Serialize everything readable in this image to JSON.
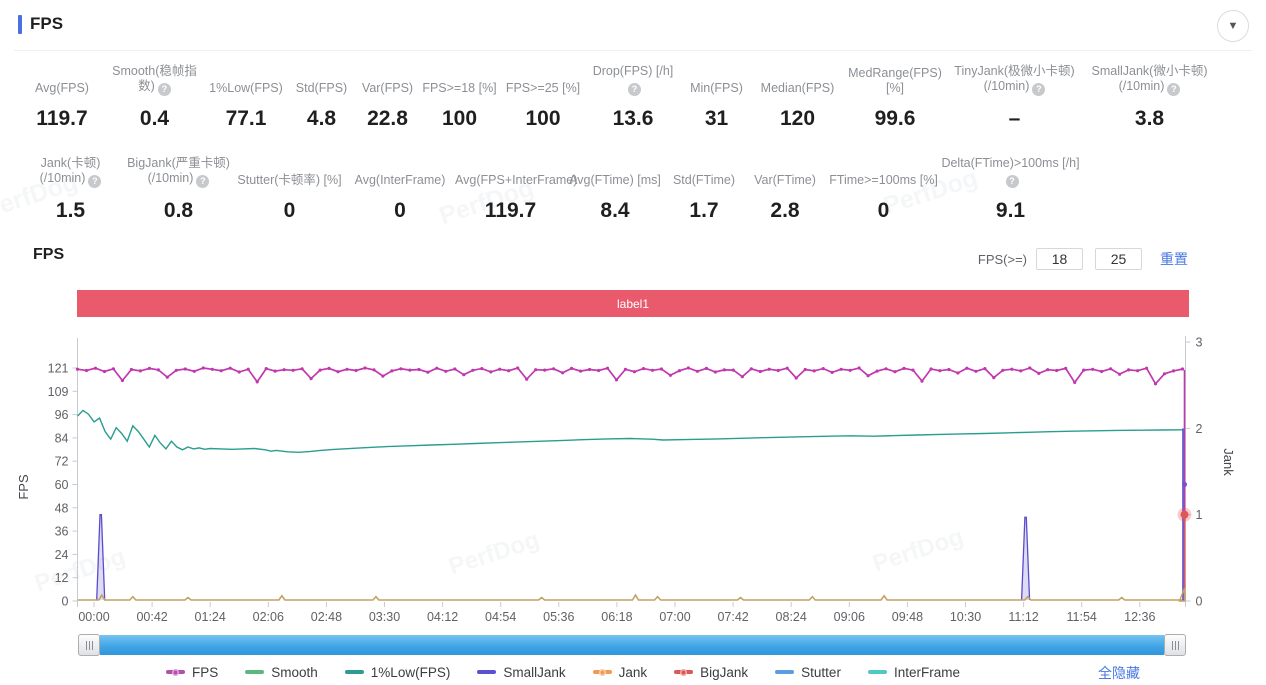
{
  "header": {
    "title": "FPS"
  },
  "stats": {
    "rows": [
      [
        {
          "label": "Avg(FPS)",
          "value": "119.7",
          "help": false
        },
        {
          "label": "Smooth(稳帧指数)",
          "value": "0.4",
          "help": true
        },
        {
          "label": "1%Low(FPS)",
          "value": "77.1",
          "help": false
        },
        {
          "label": "Std(FPS)",
          "value": "4.8",
          "help": false
        },
        {
          "label": "Var(FPS)",
          "value": "22.8",
          "help": false
        },
        {
          "label": "FPS>=18 [%]",
          "value": "100",
          "help": false
        },
        {
          "label": "FPS>=25 [%]",
          "value": "100",
          "help": false
        },
        {
          "label": "Drop(FPS) [/h]",
          "value": "13.6",
          "help": true
        },
        {
          "label": "Min(FPS)",
          "value": "31",
          "help": false
        },
        {
          "label": "Median(FPS)",
          "value": "120",
          "help": false
        },
        {
          "label": "MedRange(FPS)[%]",
          "value": "99.6",
          "help": false
        },
        {
          "label": "TinyJank(极微小卡顿)\n(/10min)",
          "value": "–",
          "help": true
        },
        {
          "label": "SmallJank(微小卡顿)\n(/10min)",
          "value": "3.8",
          "help": true
        }
      ],
      [
        {
          "label": "Jank(卡顿)\n(/10min)",
          "value": "1.5",
          "help": true
        },
        {
          "label": "BigJank(严重卡顿)\n(/10min)",
          "value": "0.8",
          "help": true
        },
        {
          "label": "Stutter(卡顿率) [%]",
          "value": "0",
          "help": false
        },
        {
          "label": "Avg(InterFrame)",
          "value": "0",
          "help": false
        },
        {
          "label": "Avg(FPS+InterFrame)",
          "value": "119.7",
          "help": false
        },
        {
          "label": "Avg(FTime) [ms]",
          "value": "8.4",
          "help": false
        },
        {
          "label": "Std(FTime)",
          "value": "1.7",
          "help": false
        },
        {
          "label": "Var(FTime)",
          "value": "2.8",
          "help": false
        },
        {
          "label": "FTime>=100ms [%]",
          "value": "0",
          "help": false
        },
        {
          "label": "Delta(FTime)>100ms [/h]",
          "value": "9.1",
          "help": true
        }
      ]
    ]
  },
  "section": {
    "title": "FPS",
    "filter_label": "FPS(>=)",
    "threshold1": "18",
    "threshold2": "25",
    "reset_label": "重置"
  },
  "label_bar": {
    "text": "label1",
    "color": "#ea5a6d"
  },
  "watermark": "PerfDog",
  "chart_data": {
    "type": "line",
    "title": "FPS",
    "x_axis": {
      "labels": [
        "00:00",
        "00:42",
        "01:24",
        "02:06",
        "02:48",
        "03:30",
        "04:12",
        "04:54",
        "05:36",
        "06:18",
        "07:00",
        "07:42",
        "08:24",
        "09:06",
        "09:48",
        "10:30",
        "11:12",
        "11:54",
        "12:36"
      ]
    },
    "y_axis_left": {
      "label": "FPS",
      "tick_labels": [
        0,
        12,
        24,
        36,
        48,
        60,
        72,
        84,
        96,
        109,
        121
      ],
      "range": [
        0,
        121
      ]
    },
    "y_axis_right": {
      "label": "Jank",
      "tick_labels": [
        0,
        1,
        2,
        3
      ],
      "range": [
        0,
        3
      ]
    },
    "series": [
      {
        "name": "FPS",
        "color": "#c138ae",
        "axis": "fps",
        "values": [
          120.4,
          119.7,
          120.9,
          119.2,
          120.6,
          114.5,
          120.2,
          119.5,
          120.8,
          120.0,
          116.2,
          119.8,
          120.5,
          119.3,
          121.0,
          120.3,
          119.6,
          120.9,
          118.9,
          120.4,
          113.8,
          120.7,
          119.4,
          120.1,
          119.8,
          120.6,
          115.5,
          119.9,
          120.8,
          119.1,
          120.3,
          119.7,
          121.0,
          120.0,
          116.8,
          119.5,
          120.6,
          119.9,
          120.2,
          118.8,
          120.9,
          119.3,
          120.5,
          117.5,
          119.8,
          120.7,
          119.0,
          120.4,
          119.6,
          121.0,
          115.2,
          120.1,
          119.9,
          120.6,
          118.5,
          120.8,
          119.4,
          120.2,
          119.7,
          120.9,
          114.8,
          120.3,
          119.1,
          120.7,
          119.8,
          120.5,
          117.2,
          119.6,
          121.0,
          119.3,
          120.8,
          118.9,
          120.0,
          119.9,
          116.5,
          120.6,
          119.2,
          120.4,
          119.7,
          120.9,
          115.8,
          120.2,
          119.5,
          120.7,
          118.7,
          120.3,
          119.8,
          121.0,
          117.0,
          119.4,
          120.6,
          119.1,
          120.8,
          119.9,
          114.2,
          120.5,
          119.6,
          120.2,
          118.4,
          120.9,
          119.3,
          120.7,
          116.0,
          119.8,
          120.4,
          119.5,
          121.0,
          118.2,
          120.1,
          119.7,
          120.8,
          113.5,
          119.9,
          120.3,
          119.2,
          120.6,
          117.8,
          120.0,
          119.6,
          120.9,
          112.8,
          118.0,
          119.5,
          120.5
        ]
      },
      {
        "name": "1%Low(FPS)",
        "color": "#2a9d8f",
        "axis": "fps",
        "points": [
          [
            0.0,
            96
          ],
          [
            0.005,
            99
          ],
          [
            0.01,
            97
          ],
          [
            0.015,
            93
          ],
          [
            0.02,
            95
          ],
          [
            0.025,
            88
          ],
          [
            0.03,
            84
          ],
          [
            0.035,
            90
          ],
          [
            0.04,
            87
          ],
          [
            0.045,
            83
          ],
          [
            0.05,
            91
          ],
          [
            0.055,
            88
          ],
          [
            0.06,
            84
          ],
          [
            0.065,
            80
          ],
          [
            0.07,
            86
          ],
          [
            0.075,
            82
          ],
          [
            0.08,
            79
          ],
          [
            0.085,
            83
          ],
          [
            0.09,
            80
          ],
          [
            0.095,
            78.5
          ],
          [
            0.1,
            80
          ],
          [
            0.105,
            79
          ],
          [
            0.11,
            79.5
          ],
          [
            0.115,
            78.8
          ],
          [
            0.12,
            79.2
          ],
          [
            0.13,
            79
          ],
          [
            0.14,
            78.8
          ],
          [
            0.15,
            79
          ],
          [
            0.16,
            79.2
          ],
          [
            0.17,
            78.5
          ],
          [
            0.175,
            77.8
          ],
          [
            0.18,
            78.2
          ],
          [
            0.19,
            77.5
          ],
          [
            0.2,
            77.2
          ],
          [
            0.21,
            77.6
          ],
          [
            0.22,
            78.2
          ],
          [
            0.23,
            78.6
          ],
          [
            0.24,
            79
          ],
          [
            0.26,
            79.6
          ],
          [
            0.28,
            80.2
          ],
          [
            0.3,
            80.6
          ],
          [
            0.32,
            81
          ],
          [
            0.34,
            81.4
          ],
          [
            0.36,
            81.8
          ],
          [
            0.38,
            82.2
          ],
          [
            0.4,
            82.6
          ],
          [
            0.42,
            83
          ],
          [
            0.44,
            83.4
          ],
          [
            0.46,
            83.8
          ],
          [
            0.48,
            84.2
          ],
          [
            0.5,
            84.4
          ],
          [
            0.52,
            84
          ],
          [
            0.53,
            83.6
          ],
          [
            0.55,
            83.8
          ],
          [
            0.58,
            84.2
          ],
          [
            0.6,
            84.5
          ],
          [
            0.62,
            84.8
          ],
          [
            0.65,
            85.2
          ],
          [
            0.68,
            85.6
          ],
          [
            0.7,
            85.8
          ],
          [
            0.72,
            85.6
          ],
          [
            0.74,
            85.9
          ],
          [
            0.76,
            86.2
          ],
          [
            0.78,
            86.5
          ],
          [
            0.8,
            86.8
          ],
          [
            0.82,
            87
          ],
          [
            0.84,
            87.3
          ],
          [
            0.86,
            87.6
          ],
          [
            0.88,
            87.9
          ],
          [
            0.9,
            88.2
          ],
          [
            0.92,
            88.4
          ],
          [
            0.94,
            88.6
          ],
          [
            0.96,
            88.7
          ],
          [
            0.98,
            88.8
          ],
          [
            1.0,
            88.9
          ]
        ]
      },
      {
        "name": "SmallJank",
        "color": "#5b4ccc",
        "axis": "jank",
        "spikes": [
          [
            0.021,
            1.0
          ],
          [
            0.858,
            0.97
          ]
        ]
      },
      {
        "name": "Jank",
        "color": "#c3a163",
        "axis": "jank",
        "baseline": 0.01,
        "bumps": [
          [
            0.022,
            0.07
          ],
          [
            0.05,
            0.05
          ],
          [
            0.1,
            0.04
          ],
          [
            0.185,
            0.06
          ],
          [
            0.27,
            0.05
          ],
          [
            0.42,
            0.04
          ],
          [
            0.505,
            0.07
          ],
          [
            0.525,
            0.05
          ],
          [
            0.6,
            0.04
          ],
          [
            0.665,
            0.05
          ],
          [
            0.73,
            0.06
          ],
          [
            0.86,
            0.05
          ],
          [
            0.945,
            0.04
          ]
        ]
      },
      {
        "name": "BigJank",
        "color": "#e05656",
        "axis": "jank",
        "end_point": 1
      }
    ],
    "end_drop": true
  },
  "scrollbar": {
    "color": "#41a7ea"
  },
  "legend": {
    "items": [
      {
        "label": "FPS",
        "color": "#b44fae",
        "dot": true
      },
      {
        "label": "Smooth",
        "color": "#5cb87f",
        "dot": false
      },
      {
        "label": "1%Low(FPS)",
        "color": "#2a9d90",
        "dot": false
      },
      {
        "label": "SmallJank",
        "color": "#5a52d0",
        "dot": false
      },
      {
        "label": "Jank",
        "color": "#ef9c52",
        "dot": true
      },
      {
        "label": "BigJank",
        "color": "#dd5757",
        "dot": true
      },
      {
        "label": "Stutter",
        "color": "#5c9de0",
        "dot": false
      },
      {
        "label": "InterFrame",
        "color": "#50c8c4",
        "dot": false
      }
    ],
    "hide_all_label": "全隐藏"
  }
}
